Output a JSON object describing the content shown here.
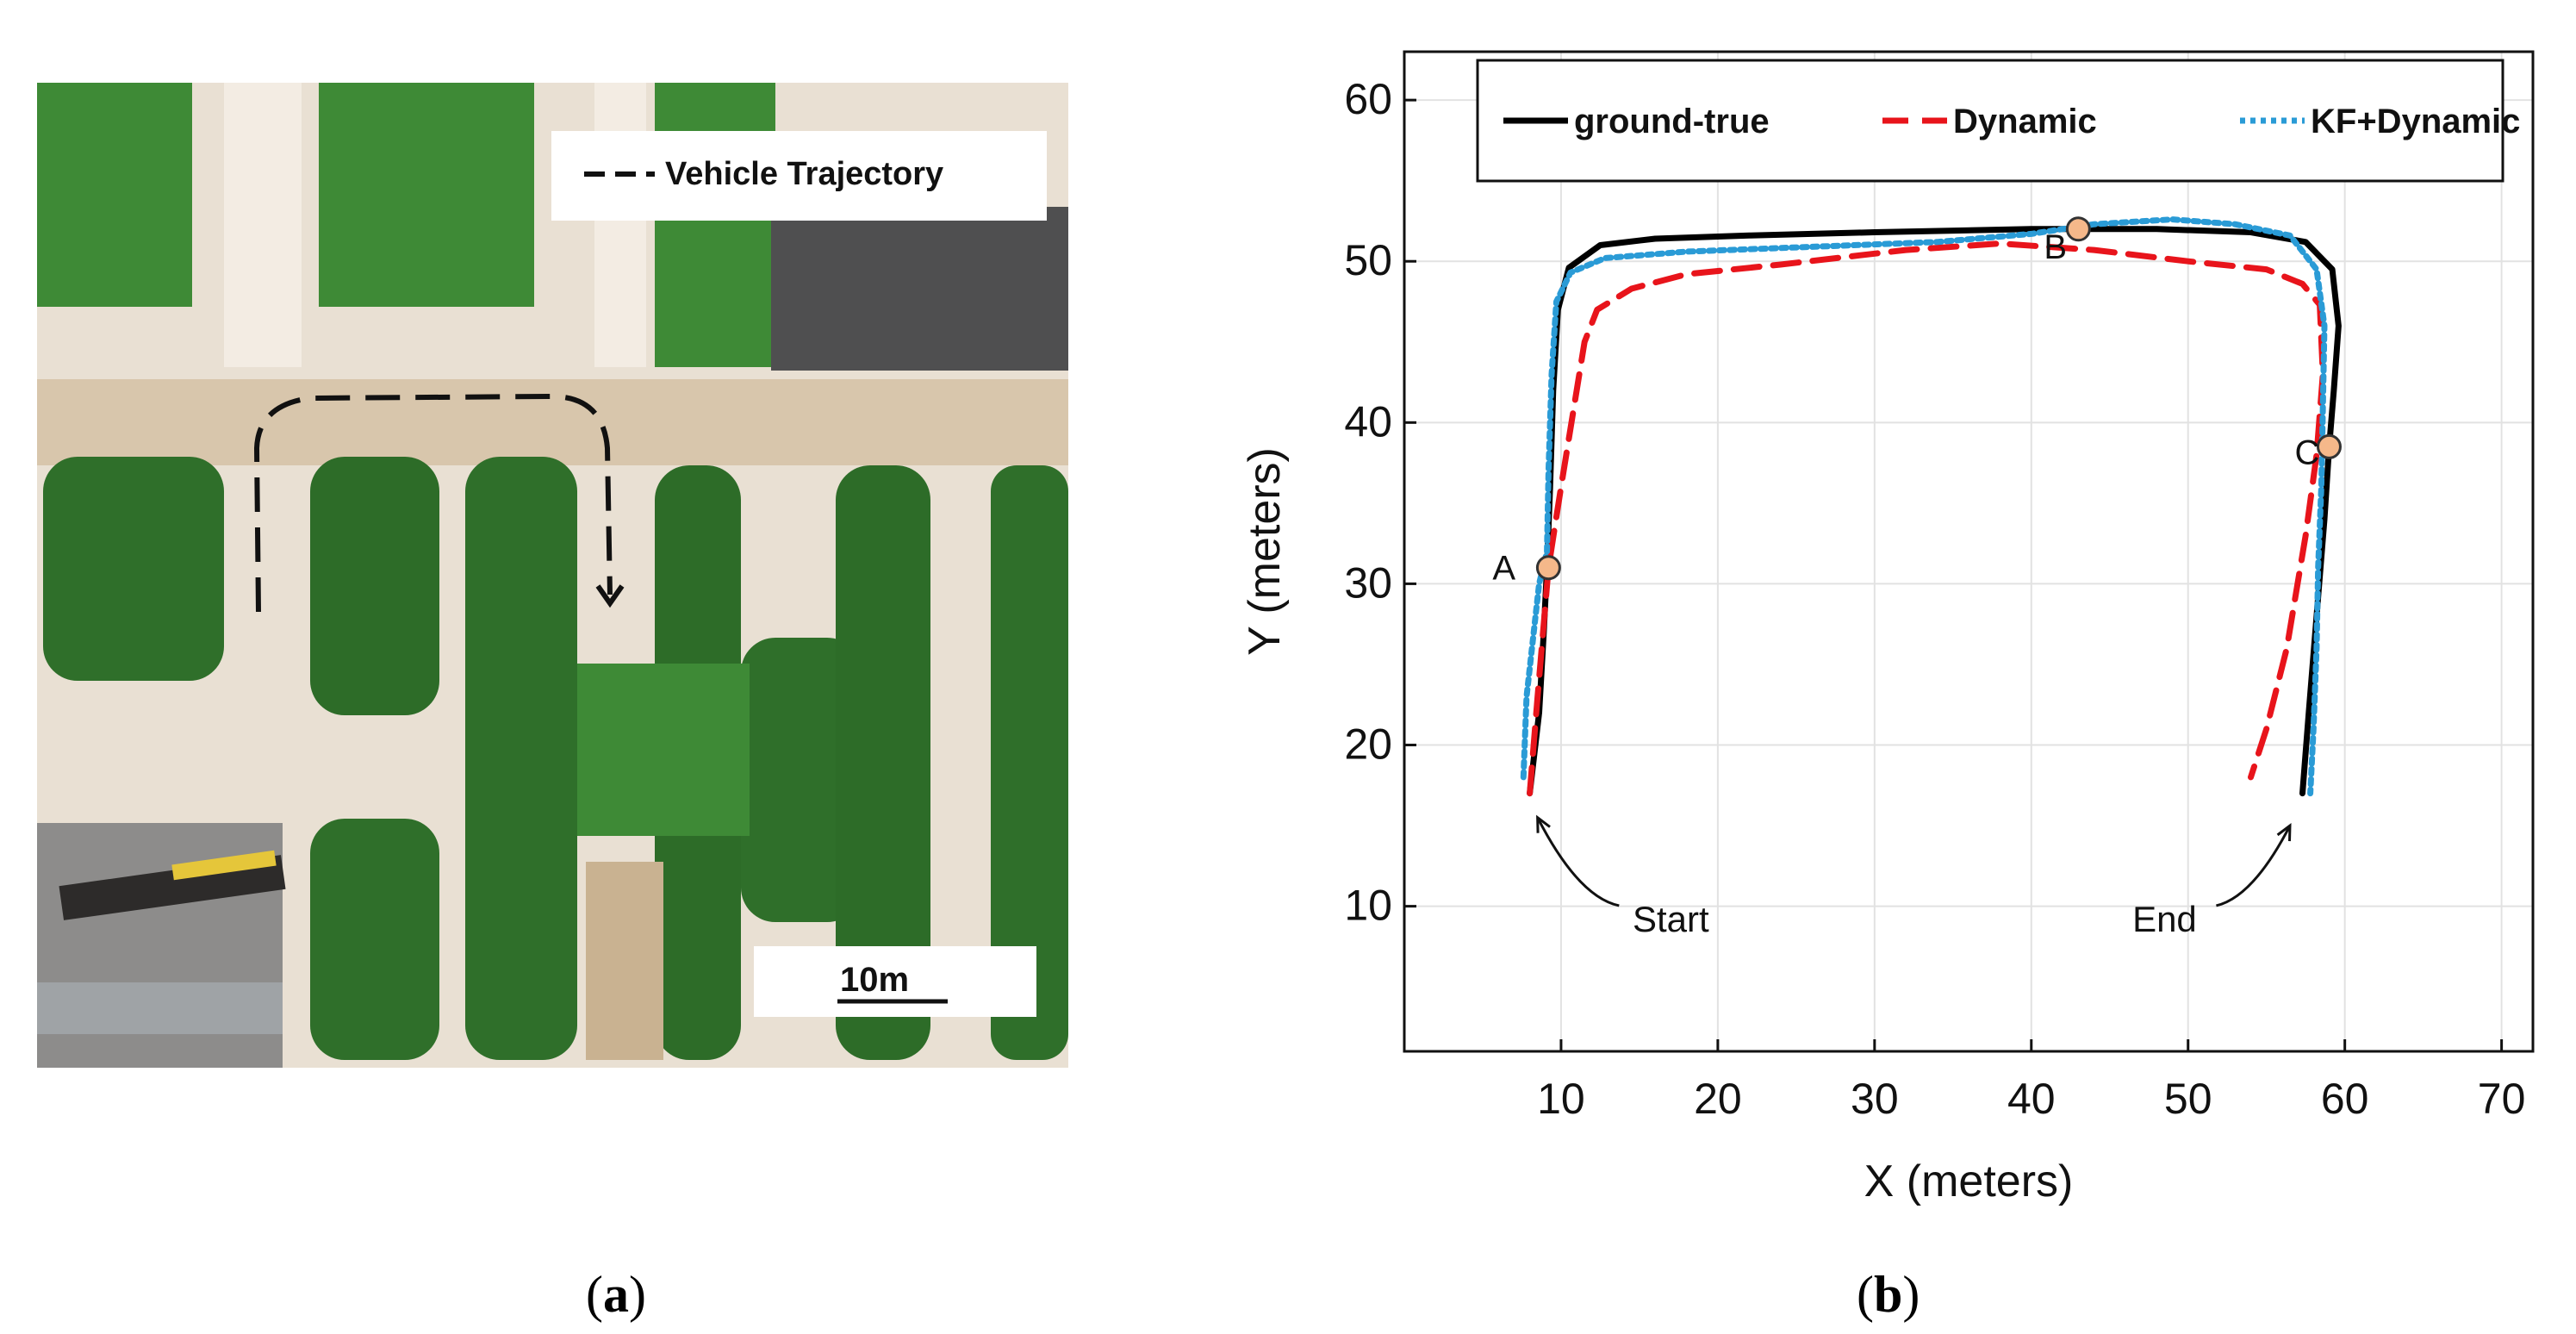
{
  "panel_a": {
    "legend_label": "Vehicle Trajectory",
    "scale_label": "10m",
    "caption_open": "(",
    "caption_letter": "a",
    "caption_close": ")",
    "colors": {
      "grass": "#3f8a3a",
      "tree": "#2f6e2a",
      "road": "#d9c7ae",
      "pavement": "#f1ebe2",
      "roof": "#4a4a4a"
    }
  },
  "panel_b": {
    "caption_open": "(",
    "caption_letter": "b",
    "caption_close": ")"
  },
  "chart_data": {
    "type": "line",
    "title": "",
    "xlabel": "X (meters)",
    "ylabel": "Y (meters)",
    "xlim": [
      0,
      72
    ],
    "ylim": [
      1,
      63
    ],
    "xticks": [
      10,
      20,
      30,
      40,
      50,
      60,
      70
    ],
    "yticks": [
      10,
      20,
      30,
      40,
      50,
      60
    ],
    "grid": true,
    "legend": {
      "placement": "top"
    },
    "series": [
      {
        "name": "ground-true",
        "color": "#000000",
        "style": "solid",
        "points": [
          [
            8,
            17
          ],
          [
            8.6,
            22
          ],
          [
            8.9,
            27
          ],
          [
            9.1,
            31
          ],
          [
            9.3,
            36
          ],
          [
            9.5,
            42
          ],
          [
            9.8,
            47
          ],
          [
            10.5,
            49.6
          ],
          [
            12.5,
            51
          ],
          [
            16,
            51.4
          ],
          [
            22,
            51.6
          ],
          [
            30,
            51.8
          ],
          [
            40,
            52
          ],
          [
            48,
            52
          ],
          [
            54,
            51.8
          ],
          [
            57.5,
            51.2
          ],
          [
            59.2,
            49.5
          ],
          [
            59.6,
            46
          ],
          [
            59.3,
            42
          ],
          [
            59,
            38.5
          ],
          [
            58.7,
            34
          ],
          [
            58.2,
            28
          ],
          [
            57.7,
            22
          ],
          [
            57.3,
            17
          ]
        ]
      },
      {
        "name": "Dynamic",
        "color": "#e8141b",
        "style": "dashed",
        "points": [
          [
            8,
            17
          ],
          [
            8.5,
            23
          ],
          [
            9.2,
            31
          ],
          [
            10,
            36
          ],
          [
            11,
            42
          ],
          [
            11.5,
            45
          ],
          [
            12.3,
            47
          ],
          [
            14.5,
            48.3
          ],
          [
            18,
            49.2
          ],
          [
            24,
            49.8
          ],
          [
            32,
            50.7
          ],
          [
            38,
            51.1
          ],
          [
            44,
            50.7
          ],
          [
            50,
            50
          ],
          [
            55,
            49.5
          ],
          [
            57.3,
            48.6
          ],
          [
            58.4,
            47.3
          ],
          [
            58.6,
            43
          ],
          [
            58.2,
            38
          ],
          [
            57.5,
            33
          ],
          [
            56.3,
            26
          ],
          [
            55,
            21
          ],
          [
            54,
            18
          ]
        ]
      },
      {
        "name": "KF+Dynamic",
        "color": "#2a9bd6",
        "style": "dotted",
        "points": [
          [
            7.6,
            18
          ],
          [
            7.8,
            23
          ],
          [
            8.6,
            30
          ],
          [
            9.1,
            32
          ],
          [
            9.2,
            37
          ],
          [
            9.4,
            43
          ],
          [
            9.7,
            47.5
          ],
          [
            10.6,
            49.3
          ],
          [
            12.8,
            50.2
          ],
          [
            18,
            50.6
          ],
          [
            26,
            50.9
          ],
          [
            34,
            51.2
          ],
          [
            40,
            51.7
          ],
          [
            44,
            52.3
          ],
          [
            49,
            52.6
          ],
          [
            53,
            52.3
          ],
          [
            56.5,
            51.6
          ],
          [
            58.2,
            49.5
          ],
          [
            58.7,
            46
          ],
          [
            58.6,
            41
          ],
          [
            58.5,
            36
          ],
          [
            58.3,
            31
          ],
          [
            58.2,
            26
          ],
          [
            58,
            21
          ],
          [
            57.8,
            17
          ]
        ]
      }
    ],
    "markers": [
      {
        "label": "A",
        "x": 9.2,
        "y": 31,
        "color": "#f5b88a"
      },
      {
        "label": "B",
        "x": 43,
        "y": 52,
        "color": "#f5b88a"
      },
      {
        "label": "C",
        "x": 59,
        "y": 38.5,
        "color": "#f5b88a"
      }
    ],
    "annotations": [
      {
        "label": "Start",
        "x": 17,
        "y": 9.5,
        "arrow_to": [
          8.5,
          15.5
        ]
      },
      {
        "label": "End",
        "x": 48.5,
        "y": 9.5,
        "arrow_to": [
          56.5,
          15
        ]
      }
    ]
  }
}
